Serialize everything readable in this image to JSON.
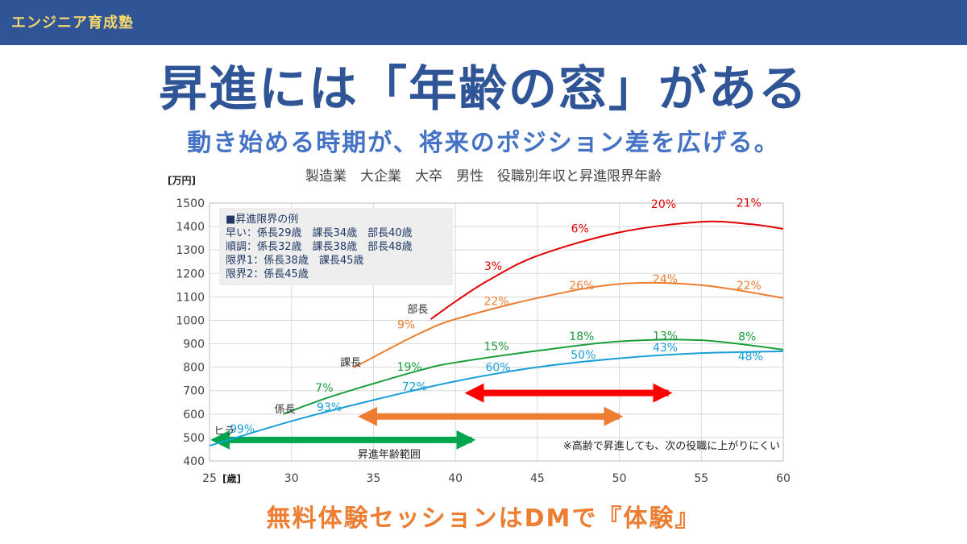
{
  "header": {
    "brand": "エンジニア育成塾"
  },
  "headline": {
    "title": "昇進には「年齢の窓」がある",
    "subtitle": "動き始める時期が、将来のポジション差を広げる。"
  },
  "footer": {
    "cta": "無料体験セッションはDMで『体験』"
  },
  "colors": {
    "hira": "#1a9fd9",
    "kakari": "#1a9e3a",
    "kacho": "#ed7d31",
    "bucho": "#e00000",
    "bar": "#2f5597"
  },
  "chart_data": {
    "type": "line",
    "title": "製造業　大企業　大卒　男性　役職別年収と昇進限界年齢",
    "ylabel": "[万円]",
    "xlabel": "[歳]",
    "xlim": [
      25,
      60
    ],
    "ylim": [
      400,
      1500
    ],
    "xticks": [
      25,
      30,
      35,
      40,
      45,
      50,
      55,
      60
    ],
    "yticks": [
      400,
      500,
      600,
      700,
      800,
      900,
      1000,
      1100,
      1200,
      1300,
      1400,
      1500
    ],
    "grid": true,
    "series": [
      {
        "name": "ヒラ",
        "color": "#1a9fd9",
        "points": [
          [
            25,
            465
          ],
          [
            30,
            570
          ],
          [
            35,
            660
          ],
          [
            40,
            740
          ],
          [
            45,
            800
          ],
          [
            50,
            838
          ],
          [
            55,
            860
          ],
          [
            60,
            868
          ]
        ],
        "labels": [
          {
            "x": 27,
            "y": 520,
            "text": "99%"
          },
          {
            "x": 32.3,
            "y": 613,
            "text": "93%"
          },
          {
            "x": 37.5,
            "y": 700,
            "text": "72%"
          },
          {
            "x": 42.6,
            "y": 783,
            "text": "60%"
          },
          {
            "x": 47.8,
            "y": 837,
            "text": "50%"
          },
          {
            "x": 52.8,
            "y": 868,
            "text": "43%"
          },
          {
            "x": 58,
            "y": 830,
            "text": "48%"
          }
        ]
      },
      {
        "name": "係長",
        "color": "#1a9e3a",
        "points": [
          [
            29.5,
            600
          ],
          [
            32,
            665
          ],
          [
            35,
            730
          ],
          [
            38,
            790
          ],
          [
            40,
            820
          ],
          [
            45,
            870
          ],
          [
            50,
            910
          ],
          [
            55,
            915
          ],
          [
            60,
            875
          ]
        ],
        "labels": [
          {
            "x": 32,
            "y": 695,
            "text": "7%"
          },
          {
            "x": 37.2,
            "y": 785,
            "text": "19%"
          },
          {
            "x": 42.5,
            "y": 873,
            "text": "15%"
          },
          {
            "x": 47.7,
            "y": 915,
            "text": "18%"
          },
          {
            "x": 52.8,
            "y": 918,
            "text": "13%"
          },
          {
            "x": 57.8,
            "y": 914,
            "text": "8%"
          }
        ]
      },
      {
        "name": "課長",
        "color": "#ed7d31",
        "points": [
          [
            33.8,
            798
          ],
          [
            36,
            880
          ],
          [
            38,
            950
          ],
          [
            40,
            1005
          ],
          [
            45,
            1095
          ],
          [
            50,
            1155
          ],
          [
            55,
            1150
          ],
          [
            60,
            1095
          ]
        ],
        "labels": [
          {
            "x": 37,
            "y": 965,
            "text": "9%"
          },
          {
            "x": 42.5,
            "y": 1065,
            "text": "22%"
          },
          {
            "x": 47.7,
            "y": 1133,
            "text": "26%"
          },
          {
            "x": 52.8,
            "y": 1160,
            "text": "24%"
          },
          {
            "x": 57.9,
            "y": 1133,
            "text": "22%"
          }
        ]
      },
      {
        "name": "部長",
        "color": "#e00000",
        "points": [
          [
            38.5,
            1005
          ],
          [
            40,
            1080
          ],
          [
            42,
            1170
          ],
          [
            45,
            1275
          ],
          [
            50,
            1375
          ],
          [
            55,
            1420
          ],
          [
            58,
            1410
          ],
          [
            60,
            1390
          ]
        ],
        "labels": [
          {
            "x": 42.3,
            "y": 1215,
            "text": "3%"
          },
          {
            "x": 47.6,
            "y": 1375,
            "text": "6%"
          },
          {
            "x": 52.7,
            "y": 1480,
            "text": "20%"
          },
          {
            "x": 57.9,
            "y": 1485,
            "text": "21%"
          }
        ]
      }
    ],
    "role_labels": [
      {
        "x": 25.9,
        "y": 513,
        "text": "ヒラ"
      },
      {
        "x": 29.6,
        "y": 607,
        "text": "係長"
      },
      {
        "x": 33.6,
        "y": 805,
        "text": "課長"
      },
      {
        "x": 37.7,
        "y": 1032,
        "text": "部長"
      }
    ],
    "ranges": [
      {
        "from": 26,
        "to": 41,
        "y": 490,
        "color": "#00a550",
        "label": "昇進年齢範囲"
      },
      {
        "from": 35,
        "to": 50,
        "y": 590,
        "color": "#ed7d31",
        "label": ""
      },
      {
        "from": 41.5,
        "to": 53,
        "y": 690,
        "color": "#ff0000",
        "label": ""
      }
    ],
    "legend_box": {
      "position": "top-left",
      "lines": [
        "■昇進限界の例",
        "早い：係長29歳　課長34歳　部長40歳",
        "順調：係長32歳　課長38歳　部長48歳",
        "限界1：係長38歳　課長45歳",
        "限界2：係長45歳"
      ]
    },
    "note": "※高齢で昇進しても、次の役職に上がりにくい"
  }
}
